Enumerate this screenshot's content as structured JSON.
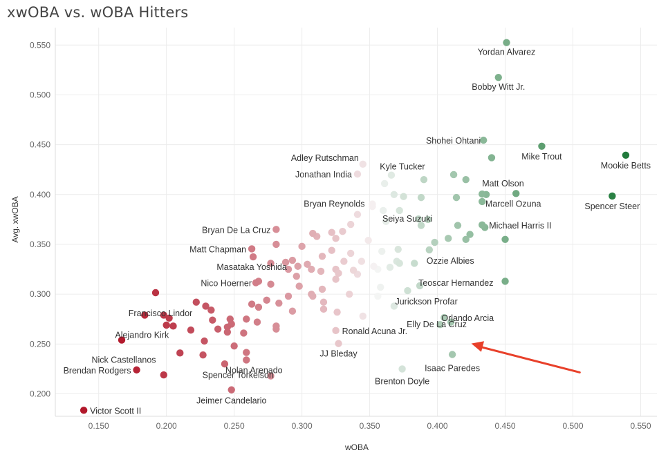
{
  "chart_data": {
    "type": "scatter",
    "title": "xwOBA vs. wOBA Hitters",
    "xlabel": "wOBA",
    "ylabel": "Avg. xwOBA",
    "xlim": [
      0.118,
      0.562
    ],
    "ylim": [
      0.1775,
      0.5675
    ],
    "x_ticks": [
      0.15,
      0.2,
      0.25,
      0.3,
      0.35,
      0.4,
      0.45,
      0.5,
      0.55
    ],
    "y_ticks": [
      0.2,
      0.25,
      0.3,
      0.35,
      0.4,
      0.45,
      0.5,
      0.55
    ],
    "x_tick_labels": [
      "0.150",
      "0.200",
      "0.250",
      "0.300",
      "0.350",
      "0.400",
      "0.450",
      "0.500",
      "0.550"
    ],
    "y_tick_labels": [
      "0.200",
      "0.250",
      "0.300",
      "0.350",
      "0.400",
      "0.450",
      "0.500",
      "0.550"
    ],
    "color_low": "#b2182b",
    "color_mid": "#f7f7f7",
    "color_high": "#1b7837",
    "arrow_color": "#e8402a",
    "arrow_from": [
      0.505,
      0.2215
    ],
    "arrow_to": [
      0.425,
      0.2505
    ],
    "labeled_points": [
      {
        "name": "Yordan Alvarez",
        "x": 0.451,
        "y": 0.5525
      },
      {
        "name": "Bobby Witt Jr.",
        "x": 0.445,
        "y": 0.5175
      },
      {
        "name": "Shohei Ohtani",
        "x": 0.434,
        "y": 0.4545
      },
      {
        "name": "Mike Trout",
        "x": 0.477,
        "y": 0.4485
      },
      {
        "name": "Mookie Betts",
        "x": 0.539,
        "y": 0.4395
      },
      {
        "name": "Spencer Steer",
        "x": 0.529,
        "y": 0.3985
      },
      {
        "name": "Adley Rutschman",
        "x": 0.345,
        "y": 0.4305
      },
      {
        "name": "Kyle Tucker",
        "x": 0.366,
        "y": 0.4195
      },
      {
        "name": "Jonathan India",
        "x": 0.341,
        "y": 0.4205
      },
      {
        "name": "Matt Olson",
        "x": 0.433,
        "y": 0.4005
      },
      {
        "name": "Marcell Ozuna",
        "x": 0.458,
        "y": 0.401
      },
      {
        "name": "Bryan Reynolds",
        "x": 0.352,
        "y": 0.3905
      },
      {
        "name": "Seiya Suzuki",
        "x": 0.386,
        "y": 0.3755
      },
      {
        "name": "Michael Harris II",
        "x": 0.433,
        "y": 0.3695
      },
      {
        "name": "Bryan De La Cruz",
        "x": 0.281,
        "y": 0.365
      },
      {
        "name": "Matt Chapman",
        "x": 0.263,
        "y": 0.3455
      },
      {
        "name": "Ozzie Albies",
        "x": 0.394,
        "y": 0.3445
      },
      {
        "name": "Masataka Yoshida",
        "x": 0.264,
        "y": 0.3375
      },
      {
        "name": "Nico Hoerner",
        "x": 0.266,
        "y": 0.3115
      },
      {
        "name": "Teoscar Hernandez",
        "x": 0.387,
        "y": 0.3085
      },
      {
        "name": "Francisco Lindor",
        "x": 0.192,
        "y": 0.3015
      },
      {
        "name": "Jurickson Profar",
        "x": 0.378,
        "y": 0.3035
      },
      {
        "name": "Orlando Arcia",
        "x": 0.405,
        "y": 0.2765
      },
      {
        "name": "Alejandro Kirk",
        "x": 0.184,
        "y": 0.279
      },
      {
        "name": "Ronald Acuna Jr.",
        "x": 0.325,
        "y": 0.2635
      },
      {
        "name": "Elly De La Cruz",
        "x": 0.402,
        "y": 0.2695
      },
      {
        "name": "Nick Castellanos",
        "x": 0.167,
        "y": 0.254
      },
      {
        "name": "Nolan Arenado",
        "x": 0.259,
        "y": 0.2415
      },
      {
        "name": "JJ Bleday",
        "x": 0.327,
        "y": 0.2505
      },
      {
        "name": "Isaac Paredes",
        "x": 0.411,
        "y": 0.2395
      },
      {
        "name": "Brendan Rodgers",
        "x": 0.178,
        "y": 0.224
      },
      {
        "name": "Spencer Torkelson",
        "x": 0.259,
        "y": 0.234
      },
      {
        "name": "Brenton Doyle",
        "x": 0.374,
        "y": 0.225
      },
      {
        "name": "Jeimer Candelario",
        "x": 0.248,
        "y": 0.204
      },
      {
        "name": "Victor Scott II",
        "x": 0.139,
        "y": 0.1835
      }
    ],
    "other_points": [
      [
        0.44,
        0.437
      ],
      [
        0.412,
        0.42
      ],
      [
        0.421,
        0.415
      ],
      [
        0.39,
        0.415
      ],
      [
        0.375,
        0.398
      ],
      [
        0.388,
        0.397
      ],
      [
        0.414,
        0.397
      ],
      [
        0.433,
        0.393
      ],
      [
        0.436,
        0.4
      ],
      [
        0.415,
        0.369
      ],
      [
        0.435,
        0.367
      ],
      [
        0.424,
        0.36
      ],
      [
        0.408,
        0.356
      ],
      [
        0.421,
        0.355
      ],
      [
        0.45,
        0.355
      ],
      [
        0.398,
        0.352
      ],
      [
        0.45,
        0.313
      ],
      [
        0.41,
        0.272
      ],
      [
        0.361,
        0.411
      ],
      [
        0.368,
        0.4
      ],
      [
        0.36,
        0.384
      ],
      [
        0.372,
        0.384
      ],
      [
        0.393,
        0.375
      ],
      [
        0.362,
        0.373
      ],
      [
        0.388,
        0.369
      ],
      [
        0.371,
        0.345
      ],
      [
        0.359,
        0.343
      ],
      [
        0.37,
        0.333
      ],
      [
        0.383,
        0.331
      ],
      [
        0.365,
        0.327
      ],
      [
        0.356,
        0.325
      ],
      [
        0.353,
        0.328
      ],
      [
        0.344,
        0.333
      ],
      [
        0.358,
        0.307
      ],
      [
        0.356,
        0.298
      ],
      [
        0.368,
        0.288
      ],
      [
        0.341,
        0.32
      ],
      [
        0.345,
        0.278
      ],
      [
        0.372,
        0.331
      ],
      [
        0.349,
        0.354
      ],
      [
        0.352,
        0.388
      ],
      [
        0.341,
        0.38
      ],
      [
        0.336,
        0.37
      ],
      [
        0.33,
        0.363
      ],
      [
        0.322,
        0.362
      ],
      [
        0.325,
        0.356
      ],
      [
        0.311,
        0.358
      ],
      [
        0.308,
        0.361
      ],
      [
        0.3,
        0.348
      ],
      [
        0.322,
        0.344
      ],
      [
        0.336,
        0.341
      ],
      [
        0.315,
        0.338
      ],
      [
        0.331,
        0.333
      ],
      [
        0.293,
        0.334
      ],
      [
        0.288,
        0.332
      ],
      [
        0.29,
        0.325
      ],
      [
        0.304,
        0.33
      ],
      [
        0.297,
        0.328
      ],
      [
        0.307,
        0.325
      ],
      [
        0.314,
        0.323
      ],
      [
        0.325,
        0.325
      ],
      [
        0.327,
        0.321
      ],
      [
        0.338,
        0.324
      ],
      [
        0.325,
        0.315
      ],
      [
        0.307,
        0.3
      ],
      [
        0.315,
        0.305
      ],
      [
        0.298,
        0.308
      ],
      [
        0.29,
        0.298
      ],
      [
        0.308,
        0.298
      ],
      [
        0.316,
        0.292
      ],
      [
        0.283,
        0.291
      ],
      [
        0.293,
        0.283
      ],
      [
        0.316,
        0.285
      ],
      [
        0.326,
        0.282
      ],
      [
        0.335,
        0.3
      ],
      [
        0.281,
        0.35
      ],
      [
        0.277,
        0.331
      ],
      [
        0.268,
        0.313
      ],
      [
        0.277,
        0.31
      ],
      [
        0.274,
        0.294
      ],
      [
        0.268,
        0.287
      ],
      [
        0.263,
        0.29
      ],
      [
        0.267,
        0.272
      ],
      [
        0.281,
        0.268
      ],
      [
        0.281,
        0.265
      ],
      [
        0.259,
        0.275
      ],
      [
        0.247,
        0.275
      ],
      [
        0.248,
        0.27
      ],
      [
        0.257,
        0.261
      ],
      [
        0.245,
        0.267
      ],
      [
        0.245,
        0.262
      ],
      [
        0.233,
        0.284
      ],
      [
        0.229,
        0.288
      ],
      [
        0.234,
        0.274
      ],
      [
        0.222,
        0.292
      ],
      [
        0.218,
        0.264
      ],
      [
        0.228,
        0.253
      ],
      [
        0.227,
        0.239
      ],
      [
        0.238,
        0.265
      ],
      [
        0.25,
        0.248
      ],
      [
        0.243,
        0.23
      ],
      [
        0.205,
        0.268
      ],
      [
        0.202,
        0.276
      ],
      [
        0.198,
        0.279
      ],
      [
        0.2,
        0.269
      ],
      [
        0.21,
        0.241
      ],
      [
        0.198,
        0.219
      ],
      [
        0.277,
        0.218
      ],
      [
        0.296,
        0.318
      ]
    ]
  }
}
